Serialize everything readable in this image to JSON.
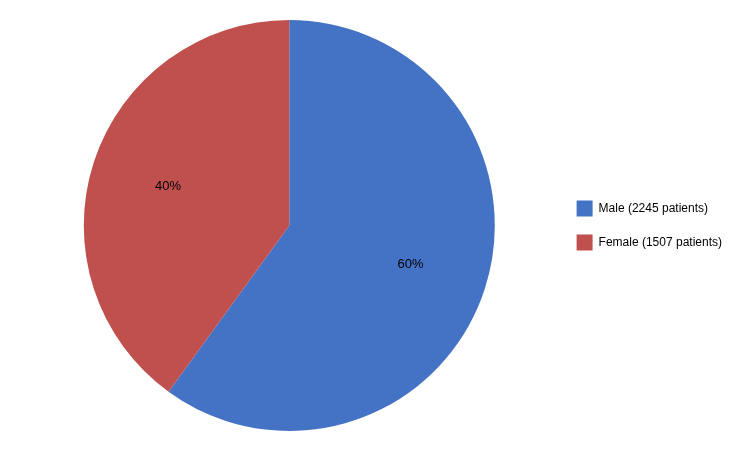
{
  "chart_data": {
    "type": "pie",
    "categories": [
      "Male (2245 patients)",
      "Female (1507 patients)"
    ],
    "values": [
      60,
      40
    ],
    "value_labels": [
      "60%",
      "40%"
    ],
    "colors": [
      "#4472C4",
      "#C0504D"
    ],
    "data_labels": true,
    "legend": "right"
  }
}
